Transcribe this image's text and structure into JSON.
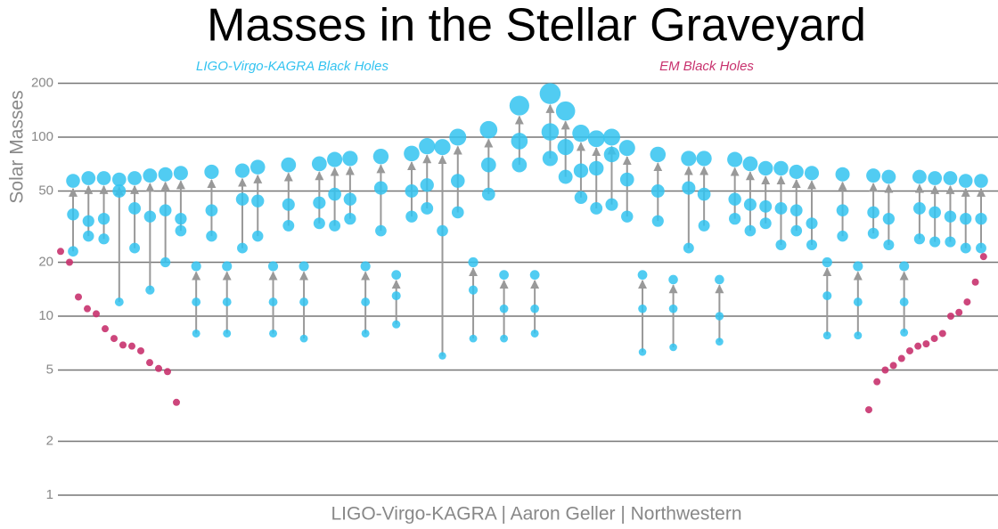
{
  "chart_data": {
    "type": "graveyard",
    "title": "Masses in the Stellar Graveyard",
    "y_label": "Solar Masses",
    "credit": "LIGO-Virgo-KAGRA | Aaron Geller | Northwestern",
    "log_y": true,
    "grid": true,
    "ylim": [
      1,
      250
    ],
    "yticks": [
      1,
      2,
      5,
      10,
      20,
      50,
      100,
      200
    ],
    "series": [
      {
        "name": "LIGO-Virgo-KAGRA Black Holes",
        "color": "#33c3f0",
        "final": [
          57,
          59,
          59,
          58,
          59,
          61,
          62,
          63,
          19,
          64,
          19,
          65,
          68,
          19,
          70,
          19,
          71,
          75,
          76,
          19,
          78,
          17,
          81,
          89,
          88,
          100,
          20,
          110,
          17,
          150,
          17,
          175,
          140,
          105,
          98,
          100,
          87,
          17,
          80,
          16,
          76,
          76,
          16,
          75,
          71,
          67,
          67,
          64,
          63,
          20,
          62,
          19,
          61,
          60,
          19,
          60,
          59,
          59,
          57,
          57
        ],
        "m1": [
          37,
          34,
          35,
          50,
          40,
          36,
          39,
          35,
          12,
          39,
          12,
          45,
          44,
          12,
          42,
          12,
          43,
          48,
          45,
          12,
          52,
          13,
          50,
          54,
          30,
          57,
          14,
          70,
          11,
          95,
          11,
          107,
          88,
          65,
          67,
          80,
          58,
          11,
          50,
          11,
          52,
          48,
          10,
          45,
          42,
          41,
          40,
          39,
          33,
          13,
          39,
          12,
          38,
          35,
          12,
          40,
          38,
          36,
          35,
          35
        ],
        "m2": [
          23,
          28,
          27,
          12,
          24,
          14,
          20,
          30,
          8,
          28,
          8,
          24,
          28,
          8,
          32,
          7.5,
          33,
          32,
          35,
          8,
          30,
          9,
          36,
          40,
          6,
          38,
          7.5,
          48,
          7.5,
          70,
          8,
          76,
          60,
          46,
          40,
          42,
          36,
          6.3,
          34,
          6.7,
          24,
          32,
          7.2,
          35,
          30,
          33,
          25,
          30,
          25,
          7.8,
          28,
          7.8,
          29,
          25,
          8.1,
          27,
          26,
          26,
          24,
          24
        ]
      },
      {
        "name": "EM Black Holes",
        "color": "#c8326e",
        "values": [
          23,
          20,
          12.8,
          11,
          10.3,
          8.5,
          7.5,
          6.9,
          6.8,
          6.4,
          5.5,
          5.1,
          4.9,
          3.3,
          3.0,
          4.3,
          5.0,
          5.3,
          5.8,
          6.4,
          6.8,
          7.0,
          7.5,
          8.0,
          10,
          10.5,
          12,
          15.5,
          21.5
        ]
      }
    ]
  }
}
